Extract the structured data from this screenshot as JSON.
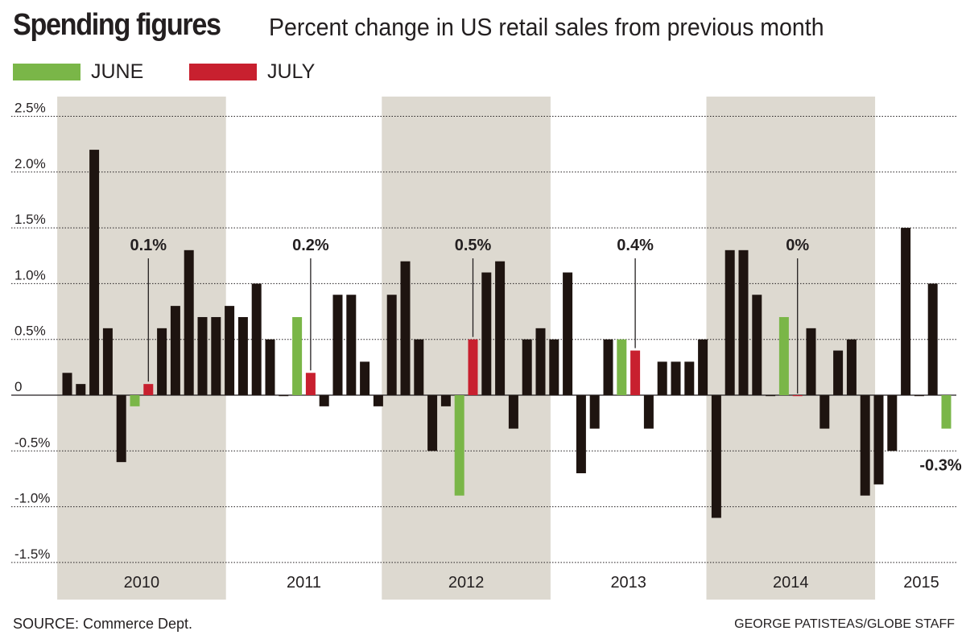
{
  "title": "Spending figures",
  "subtitle": "Percent change in US retail sales from previous month",
  "legend": [
    {
      "label": "JUNE",
      "color": "#7ab648"
    },
    {
      "label": "JULY",
      "color": "#c8202f"
    }
  ],
  "source": "SOURCE: Commerce Dept.",
  "credit": "GEORGE PATISTEAS/GLOBE STAFF",
  "colors": {
    "bar": "#1e1410",
    "june": "#7ab648",
    "july": "#c8202f",
    "band": "#ddd9d0",
    "grid": "#231f20"
  },
  "chart_data": {
    "type": "bar",
    "ylim": [
      -1.5,
      2.5
    ],
    "yticks": [
      "2.5%",
      "2.0%",
      "1.5%",
      "1.0%",
      "0.5%",
      "0",
      "-0.5%",
      "-1.0%",
      "-1.5%"
    ],
    "ytick_values": [
      2.5,
      2.0,
      1.5,
      1.0,
      0.5,
      0,
      -0.5,
      -1.0,
      -1.5
    ],
    "years": [
      "2010",
      "2011",
      "2012",
      "2013",
      "2014",
      "2015"
    ],
    "shaded_years": [
      "2010",
      "2012",
      "2014"
    ],
    "grid": "dotted horizontal",
    "series": [
      {
        "year": "2010",
        "values": [
          0.2,
          0.1,
          2.2,
          0.6,
          -0.6,
          -0.1,
          0.1,
          0.6,
          0.8,
          1.3,
          0.7,
          0.7
        ]
      },
      {
        "year": "2011",
        "values": [
          0.8,
          0.7,
          1.0,
          0.5,
          0.0,
          0.7,
          0.2,
          -0.1,
          0.9,
          0.9,
          0.3,
          -0.1
        ]
      },
      {
        "year": "2012",
        "values": [
          0.9,
          1.2,
          0.5,
          -0.5,
          -0.1,
          -0.9,
          0.5,
          1.1,
          1.2,
          -0.3,
          0.5,
          0.6
        ]
      },
      {
        "year": "2013",
        "values": [
          0.5,
          1.1,
          -0.7,
          -0.3,
          0.5,
          0.5,
          0.4,
          -0.3,
          0.3,
          0.3,
          0.3,
          0.5
        ]
      },
      {
        "year": "2014",
        "values": [
          -1.1,
          1.3,
          1.3,
          0.9,
          0.0,
          0.7,
          0.0,
          0.6,
          -0.3,
          0.4,
          0.5,
          -0.9
        ]
      },
      {
        "year": "2015",
        "values": [
          -0.8,
          -0.5,
          1.5,
          0.0,
          1.0,
          -0.3
        ]
      }
    ],
    "annotations": [
      {
        "text": "0.1%",
        "year": "2010",
        "month_index": 6
      },
      {
        "text": "0.2%",
        "year": "2011",
        "month_index": 6
      },
      {
        "text": "0.5%",
        "year": "2012",
        "month_index": 6
      },
      {
        "text": "0.4%",
        "year": "2013",
        "month_index": 6
      },
      {
        "text": "0%",
        "year": "2014",
        "month_index": 6
      },
      {
        "text": "-0.3%",
        "year": "2015",
        "month_index": 5
      }
    ]
  }
}
